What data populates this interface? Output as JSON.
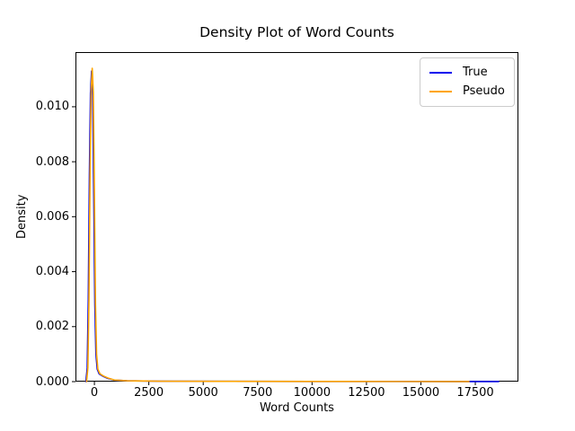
{
  "figure": {
    "background": "#ffffff",
    "spine_color": "#000000",
    "tick_color": "#000000"
  },
  "chart_data": {
    "type": "line",
    "title": "Density Plot of Word Counts",
    "xlabel": "Word Counts",
    "ylabel": "Density",
    "grid": false,
    "legend_position": "upper right",
    "xlim": [
      -870,
      19480
    ],
    "ylim": [
      0,
      0.01199
    ],
    "xticks": [
      0,
      2500,
      5000,
      7500,
      10000,
      12500,
      15000,
      17500
    ],
    "xtick_labels": [
      "0",
      "2500",
      "5000",
      "7500",
      "10000",
      "12500",
      "15000",
      "17500"
    ],
    "yticks": [
      0.0,
      0.002,
      0.004,
      0.006,
      0.008,
      0.01
    ],
    "ytick_labels": [
      "0.000",
      "0.002",
      "0.004",
      "0.006",
      "0.008",
      "0.010"
    ],
    "legend": {
      "entries": [
        {
          "label": "True",
          "color": "#0000ee"
        },
        {
          "label": "Pseudo",
          "color": "#ffa500"
        }
      ]
    },
    "series": [
      {
        "name": "True",
        "color": "#0000ee",
        "peak": {
          "x": -130,
          "y": 0.0113
        },
        "points": [
          [
            -390,
            0.0
          ],
          [
            -330,
            0.0005
          ],
          [
            -280,
            0.003
          ],
          [
            -230,
            0.0075
          ],
          [
            -180,
            0.0105
          ],
          [
            -130,
            0.0113
          ],
          [
            -80,
            0.0104
          ],
          [
            -30,
            0.0068
          ],
          [
            20,
            0.0028
          ],
          [
            70,
            0.001
          ],
          [
            130,
            0.00045
          ],
          [
            220,
            0.00028
          ],
          [
            380,
            0.0002
          ],
          [
            600,
            0.00012
          ],
          [
            900,
            6e-05
          ],
          [
            1500,
            3e-05
          ],
          [
            3000,
            1.5e-05
          ],
          [
            6000,
            1e-05
          ],
          [
            10000,
            7e-06
          ],
          [
            14000,
            5e-06
          ],
          [
            17000,
            3e-06
          ],
          [
            18570,
            1e-06
          ]
        ]
      },
      {
        "name": "Pseudo",
        "color": "#ffa500",
        "peak": {
          "x": -100,
          "y": 0.0114
        },
        "points": [
          [
            -360,
            0.0
          ],
          [
            -300,
            0.0005
          ],
          [
            -250,
            0.003
          ],
          [
            -200,
            0.0076
          ],
          [
            -150,
            0.0106
          ],
          [
            -100,
            0.0114
          ],
          [
            -50,
            0.0105
          ],
          [
            0,
            0.0069
          ],
          [
            50,
            0.0028
          ],
          [
            100,
            0.001
          ],
          [
            160,
            0.00045
          ],
          [
            250,
            0.00029
          ],
          [
            400,
            0.00021
          ],
          [
            620,
            0.00013
          ],
          [
            900,
            6e-05
          ],
          [
            1500,
            3e-05
          ],
          [
            3000,
            1.5e-05
          ],
          [
            6000,
            1e-05
          ],
          [
            10000,
            7e-06
          ],
          [
            14000,
            4e-06
          ],
          [
            17210,
            2e-06
          ]
        ]
      }
    ]
  }
}
